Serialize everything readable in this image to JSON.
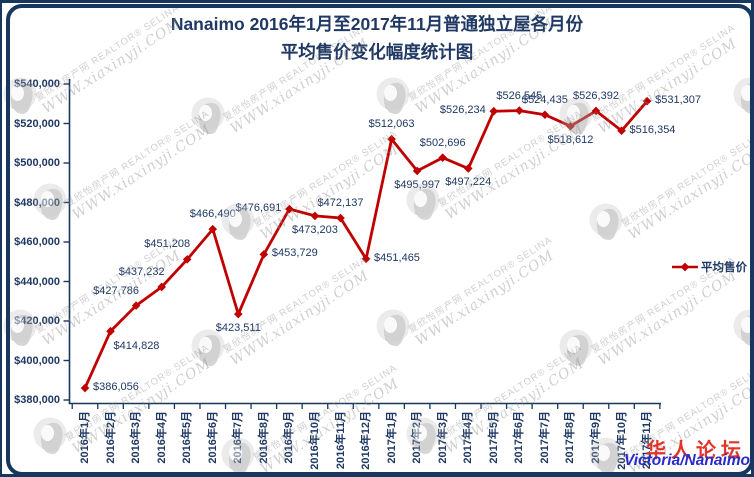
{
  "title": {
    "full": "Nanaimo 2016年1月至2017年11月普通独立屋各月份平均售价变化幅度统计图"
  },
  "chart_data": {
    "type": "line",
    "title": "Nanaimo 2016年1月至2017年11月普通独立屋各月份平均售价变化幅度统计图",
    "title_lines": [
      "Nanaimo 2016年1月至2017年11月普通独立屋各月份",
      "平均售价变化幅度统计图"
    ],
    "categories": [
      "2016年1月",
      "2016年2月",
      "2016年3月",
      "2016年4月",
      "2016年5月",
      "2016年6月",
      "2016年7月",
      "2016年8月",
      "2016年9月",
      "2016年10月",
      "2016年11月",
      "2016年12月",
      "2017年1月",
      "2017年2月",
      "2017年3月",
      "2017年4月",
      "2017年5月",
      "2017年6月",
      "2017年7月",
      "2017年8月",
      "2017年9月",
      "2017年10月",
      "2017年11月"
    ],
    "series": [
      {
        "name": "平均售价",
        "values": [
          386056,
          414828,
          427786,
          437232,
          451208,
          466490,
          423511,
          453729,
          476691,
          473203,
          472137,
          451465,
          512063,
          495997,
          502696,
          497224,
          526234,
          526545,
          524435,
          518612,
          526392,
          516354,
          531307
        ],
        "point_labels": [
          "$386,056",
          "$414,828",
          "$427,786",
          "$437,232",
          "$451,208",
          "$466,490",
          "$423,511",
          "$453,729",
          "$476,691",
          "$473,203",
          "$472,137",
          "$451,465",
          "$512,063",
          "$495,997",
          "$502,696",
          "$497,224",
          "$526,234",
          "$526,545",
          "$524,435",
          "$518,612",
          "$526,392",
          "$516,354",
          "$531,307"
        ],
        "label_placements": [
          "right",
          "below-right",
          "above-left",
          "above-left",
          "above-left",
          "above",
          "below",
          "right",
          "left",
          "below",
          "above",
          "right",
          "above",
          "below",
          "above",
          "below",
          "left",
          "above",
          "above",
          "below",
          "above",
          "right",
          "right"
        ]
      }
    ],
    "xlabel": "",
    "ylabel": "",
    "ylim": [
      380000,
      540000
    ],
    "y_tick_step": 20000,
    "y_tick_labels": [
      "$380,000",
      "$400,000",
      "$420,000",
      "$440,000",
      "$460,000",
      "$480,000",
      "$500,000",
      "$520,000",
      "$540,000"
    ],
    "grid": false,
    "legend_position": "right",
    "marker": "diamond",
    "colors": {
      "line": "#C00000",
      "text": "#1F3864",
      "axis": "#17375E",
      "border": "#17375E"
    }
  },
  "legend": {
    "label": "平均售价"
  },
  "watermark": {
    "site_cn": "夏欣怡房产网",
    "realtor": "REALTOR® SELINA",
    "site_url": "WWW.xiaxinyji.COM",
    "color": "#8C8C8C"
  },
  "stamps": {
    "forum": "华人论坛",
    "forum_color": "#E0352B",
    "region": "Victoria/Nanaimo",
    "region_color": "#2B2BC8"
  }
}
